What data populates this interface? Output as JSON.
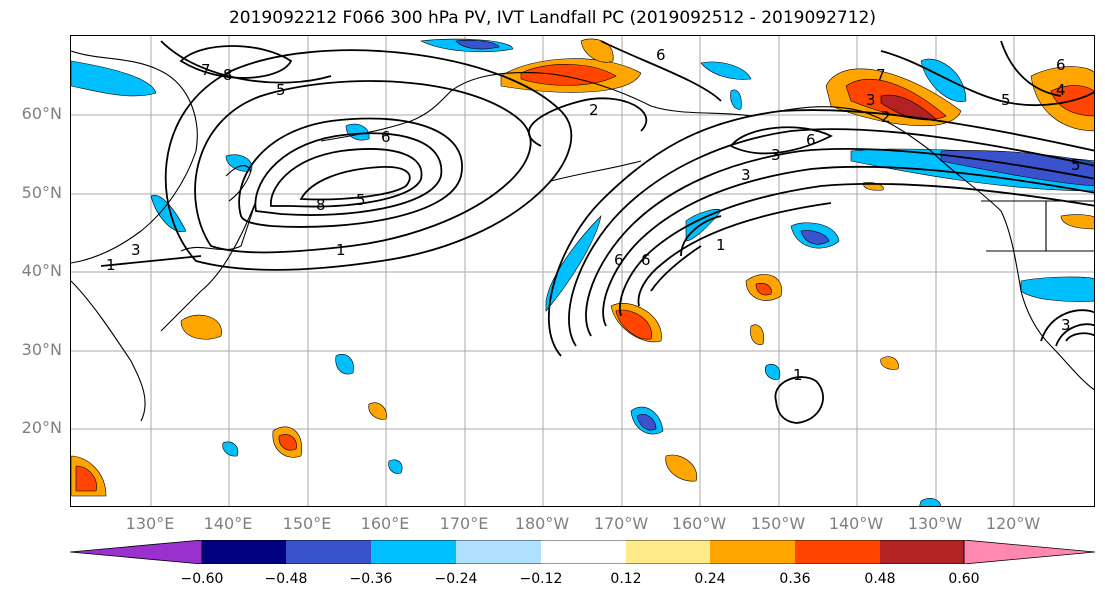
{
  "title": "2019092212 F066 300 hPa PV, IVT Landfall PC (2019092512 - 2019092712)",
  "lat_labels": [
    "60°N",
    "50°N",
    "40°N",
    "30°N",
    "20°N"
  ],
  "lon_labels": [
    "130°E",
    "140°E",
    "150°E",
    "160°E",
    "170°E",
    "180°W",
    "170°W",
    "160°W",
    "150°W",
    "140°W",
    "130°W",
    "120°W"
  ],
  "colorbar": {
    "colors": [
      "#9a31cf",
      "#000080",
      "#3a53cc",
      "#00bfff",
      "#b0e0ff",
      "#ffffff",
      "#ffeb8a",
      "#ffa500",
      "#ff4500",
      "#b22222",
      "#ff88b0"
    ],
    "ticks": [
      "−0.60",
      "−0.48",
      "−0.36",
      "−0.24",
      "−0.12",
      "0.12",
      "0.24",
      "0.36",
      "0.48",
      "0.60"
    ]
  },
  "contour_labels": [
    "7",
    "8",
    "5",
    "6",
    "2",
    "1",
    "1",
    "8",
    "6",
    "5",
    "3",
    "6",
    "6",
    "3",
    "1",
    "6",
    "7",
    "3",
    "2",
    "5",
    "6",
    "5",
    "4",
    "3",
    "1",
    "3"
  ]
}
